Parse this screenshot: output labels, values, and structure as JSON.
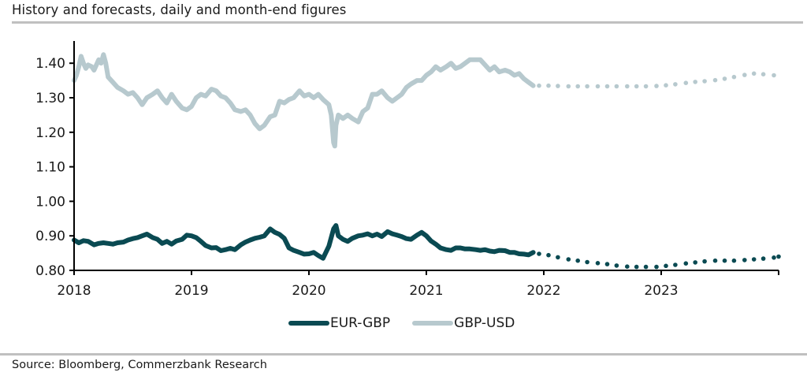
{
  "title": "History and forecasts, daily and month-end figures",
  "source": "Source: Bloomberg, Commerzbank Research",
  "legend": [
    {
      "name": "EUR-GBP",
      "color": "#0a4a52"
    },
    {
      "name": "GBP-USD",
      "color": "#b7c9ce"
    }
  ],
  "chart_data": {
    "type": "line",
    "title": "History and forecasts, daily and month-end figures",
    "xlabel": "",
    "ylabel": "",
    "xlim": [
      2018.0,
      2024.0
    ],
    "ylim": [
      0.8,
      1.45
    ],
    "y_ticks": [
      "0.80",
      "0.90",
      "1.00",
      "1.10",
      "1.20",
      "1.30",
      "1.40"
    ],
    "x_ticks": [
      "2018",
      "2019",
      "2020",
      "2021",
      "2022",
      "2023"
    ],
    "legend_position": "bottom-center",
    "grid": false,
    "series": [
      {
        "name": "EUR-GBP",
        "color": "#0a4a52",
        "history": {
          "x": [
            2018.0,
            2018.04,
            2018.08,
            2018.12,
            2018.17,
            2018.21,
            2018.25,
            2018.29,
            2018.33,
            2018.37,
            2018.42,
            2018.46,
            2018.5,
            2018.54,
            2018.58,
            2018.62,
            2018.67,
            2018.71,
            2018.75,
            2018.79,
            2018.83,
            2018.87,
            2018.92,
            2018.96,
            2019.0,
            2019.04,
            2019.08,
            2019.12,
            2019.17,
            2019.21,
            2019.25,
            2019.29,
            2019.33,
            2019.37,
            2019.42,
            2019.46,
            2019.5,
            2019.54,
            2019.58,
            2019.62,
            2019.67,
            2019.71,
            2019.75,
            2019.79,
            2019.83,
            2019.87,
            2019.92,
            2019.96,
            2020.0,
            2020.04,
            2020.08,
            2020.12,
            2020.17,
            2020.21,
            2020.23,
            2020.25,
            2020.29,
            2020.33,
            2020.37,
            2020.42,
            2020.46,
            2020.5,
            2020.54,
            2020.58,
            2020.62,
            2020.67,
            2020.71,
            2020.75,
            2020.79,
            2020.83,
            2020.87,
            2020.92,
            2020.96,
            2021.0,
            2021.04,
            2021.08,
            2021.12,
            2021.17,
            2021.21,
            2021.25,
            2021.29,
            2021.33,
            2021.37,
            2021.42,
            2021.46,
            2021.5,
            2021.54,
            2021.58,
            2021.62,
            2021.67,
            2021.71,
            2021.75,
            2021.79,
            2021.83,
            2021.87,
            2021.91
          ],
          "y": [
            0.888,
            0.88,
            0.886,
            0.884,
            0.874,
            0.878,
            0.88,
            0.878,
            0.876,
            0.88,
            0.882,
            0.888,
            0.892,
            0.895,
            0.9,
            0.905,
            0.895,
            0.89,
            0.878,
            0.884,
            0.876,
            0.885,
            0.89,
            0.902,
            0.9,
            0.895,
            0.884,
            0.872,
            0.865,
            0.866,
            0.857,
            0.86,
            0.864,
            0.86,
            0.874,
            0.882,
            0.888,
            0.893,
            0.896,
            0.9,
            0.92,
            0.91,
            0.904,
            0.893,
            0.865,
            0.858,
            0.852,
            0.847,
            0.848,
            0.852,
            0.843,
            0.835,
            0.87,
            0.92,
            0.93,
            0.9,
            0.89,
            0.884,
            0.893,
            0.9,
            0.902,
            0.906,
            0.9,
            0.905,
            0.898,
            0.912,
            0.906,
            0.902,
            0.898,
            0.892,
            0.89,
            0.902,
            0.91,
            0.9,
            0.885,
            0.876,
            0.865,
            0.86,
            0.858,
            0.865,
            0.865,
            0.862,
            0.862,
            0.86,
            0.858,
            0.86,
            0.856,
            0.854,
            0.858,
            0.857,
            0.852,
            0.852,
            0.848,
            0.847,
            0.845,
            0.852
          ]
        },
        "forecast_month_end": {
          "x": [
            2021.96,
            2022.04,
            2022.12,
            2022.21,
            2022.29,
            2022.37,
            2022.46,
            2022.54,
            2022.62,
            2022.71,
            2022.79,
            2022.87,
            2022.96,
            2023.04,
            2023.12,
            2023.21,
            2023.29,
            2023.37,
            2023.46,
            2023.54,
            2023.62,
            2023.71,
            2023.79,
            2023.87,
            2023.96,
            2024.0
          ],
          "y": [
            0.848,
            0.844,
            0.838,
            0.832,
            0.828,
            0.824,
            0.821,
            0.818,
            0.814,
            0.811,
            0.81,
            0.81,
            0.81,
            0.813,
            0.816,
            0.82,
            0.823,
            0.826,
            0.828,
            0.828,
            0.828,
            0.83,
            0.832,
            0.834,
            0.837,
            0.84
          ]
        }
      },
      {
        "name": "GBP-USD",
        "color": "#b7c9ce",
        "history": {
          "x": [
            2018.0,
            2018.02,
            2018.04,
            2018.06,
            2018.08,
            2018.1,
            2018.12,
            2018.15,
            2018.17,
            2018.19,
            2018.21,
            2018.23,
            2018.25,
            2018.27,
            2018.29,
            2018.33,
            2018.37,
            2018.42,
            2018.46,
            2018.5,
            2018.54,
            2018.58,
            2018.62,
            2018.67,
            2018.71,
            2018.75,
            2018.79,
            2018.83,
            2018.87,
            2018.92,
            2018.96,
            2019.0,
            2019.04,
            2019.08,
            2019.12,
            2019.17,
            2019.21,
            2019.25,
            2019.29,
            2019.33,
            2019.37,
            2019.42,
            2019.46,
            2019.5,
            2019.54,
            2019.58,
            2019.62,
            2019.67,
            2019.71,
            2019.75,
            2019.79,
            2019.83,
            2019.87,
            2019.92,
            2019.96,
            2020.0,
            2020.04,
            2020.08,
            2020.12,
            2020.17,
            2020.19,
            2020.21,
            2020.22,
            2020.23,
            2020.25,
            2020.29,
            2020.33,
            2020.37,
            2020.42,
            2020.46,
            2020.5,
            2020.54,
            2020.58,
            2020.62,
            2020.67,
            2020.71,
            2020.75,
            2020.79,
            2020.83,
            2020.87,
            2020.92,
            2020.96,
            2021.0,
            2021.04,
            2021.08,
            2021.12,
            2021.17,
            2021.21,
            2021.25,
            2021.29,
            2021.33,
            2021.37,
            2021.42,
            2021.46,
            2021.5,
            2021.54,
            2021.58,
            2021.62,
            2021.67,
            2021.71,
            2021.75,
            2021.79,
            2021.83,
            2021.87,
            2021.91
          ],
          "y": [
            1.35,
            1.365,
            1.39,
            1.42,
            1.4,
            1.385,
            1.395,
            1.39,
            1.38,
            1.395,
            1.41,
            1.4,
            1.425,
            1.4,
            1.36,
            1.345,
            1.33,
            1.32,
            1.31,
            1.315,
            1.3,
            1.28,
            1.3,
            1.31,
            1.32,
            1.3,
            1.285,
            1.31,
            1.29,
            1.27,
            1.265,
            1.275,
            1.3,
            1.31,
            1.305,
            1.325,
            1.32,
            1.305,
            1.3,
            1.285,
            1.265,
            1.26,
            1.265,
            1.25,
            1.225,
            1.21,
            1.22,
            1.245,
            1.25,
            1.29,
            1.285,
            1.295,
            1.3,
            1.32,
            1.305,
            1.31,
            1.3,
            1.31,
            1.295,
            1.28,
            1.25,
            1.17,
            1.16,
            1.22,
            1.25,
            1.24,
            1.25,
            1.24,
            1.23,
            1.26,
            1.27,
            1.31,
            1.31,
            1.32,
            1.3,
            1.29,
            1.3,
            1.31,
            1.33,
            1.34,
            1.35,
            1.35,
            1.365,
            1.375,
            1.39,
            1.38,
            1.39,
            1.4,
            1.385,
            1.39,
            1.4,
            1.41,
            1.41,
            1.41,
            1.395,
            1.38,
            1.39,
            1.375,
            1.38,
            1.375,
            1.365,
            1.37,
            1.355,
            1.345,
            1.335
          ]
        },
        "forecast_month_end": {
          "x": [
            2021.96,
            2022.04,
            2022.12,
            2022.21,
            2022.29,
            2022.37,
            2022.46,
            2022.54,
            2022.62,
            2022.71,
            2022.79,
            2022.87,
            2022.96,
            2023.04,
            2023.12,
            2023.21,
            2023.29,
            2023.37,
            2023.46,
            2023.54,
            2023.62,
            2023.71,
            2023.79,
            2023.87,
            2023.96
          ],
          "y": [
            1.335,
            1.335,
            1.334,
            1.333,
            1.333,
            1.333,
            1.333,
            1.333,
            1.333,
            1.333,
            1.333,
            1.333,
            1.334,
            1.336,
            1.339,
            1.343,
            1.346,
            1.348,
            1.351,
            1.355,
            1.36,
            1.366,
            1.37,
            1.368,
            1.365
          ]
        }
      }
    ]
  }
}
